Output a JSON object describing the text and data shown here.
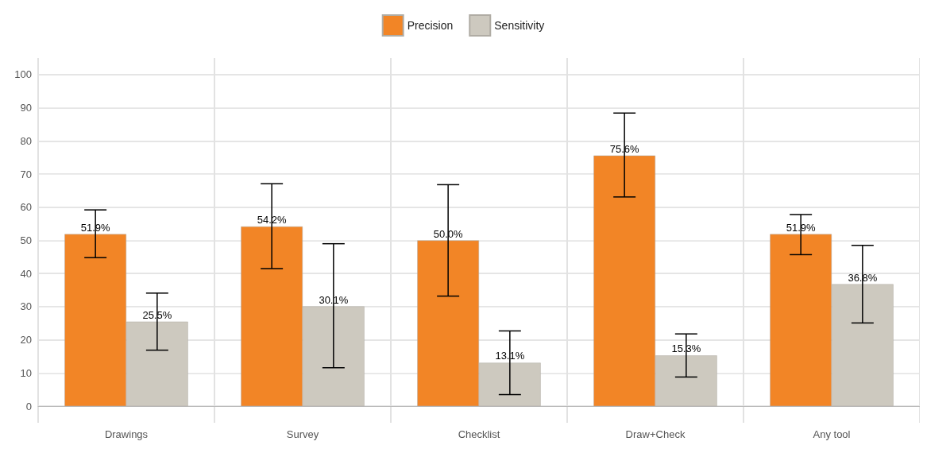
{
  "chart_data": {
    "type": "bar",
    "categories": [
      "Drawings",
      "Survey",
      "Checklist",
      "Draw+Check",
      "Any tool"
    ],
    "series": [
      {
        "name": "Precision",
        "color": "#f28526",
        "values": [
          51.9,
          54.2,
          50.0,
          75.6,
          51.9
        ],
        "value_labels": [
          "51.9%",
          "54.2%",
          "50.0%",
          "75.6%",
          "51.9%"
        ],
        "errors": [
          [
            44.8,
            59.2
          ],
          [
            41.5,
            67.1
          ],
          [
            33.2,
            66.8
          ],
          [
            63.1,
            88.4
          ],
          [
            45.7,
            57.8
          ]
        ]
      },
      {
        "name": "Sensitivity",
        "color": "#cdc9bf",
        "values": [
          25.5,
          30.1,
          13.1,
          15.3,
          36.8
        ],
        "value_labels": [
          "25.5%",
          "30.1%",
          "13.1%",
          "15.3%",
          "36.8%"
        ],
        "errors": [
          [
            16.9,
            34.1
          ],
          [
            11.6,
            49.0
          ],
          [
            3.5,
            22.7
          ],
          [
            8.8,
            21.8
          ],
          [
            25.1,
            48.5
          ]
        ]
      }
    ],
    "ylim": [
      -5,
      105
    ],
    "yticks": [
      0,
      10,
      20,
      30,
      40,
      50,
      60,
      70,
      80,
      90,
      100
    ],
    "grid": true,
    "legend": "top"
  }
}
